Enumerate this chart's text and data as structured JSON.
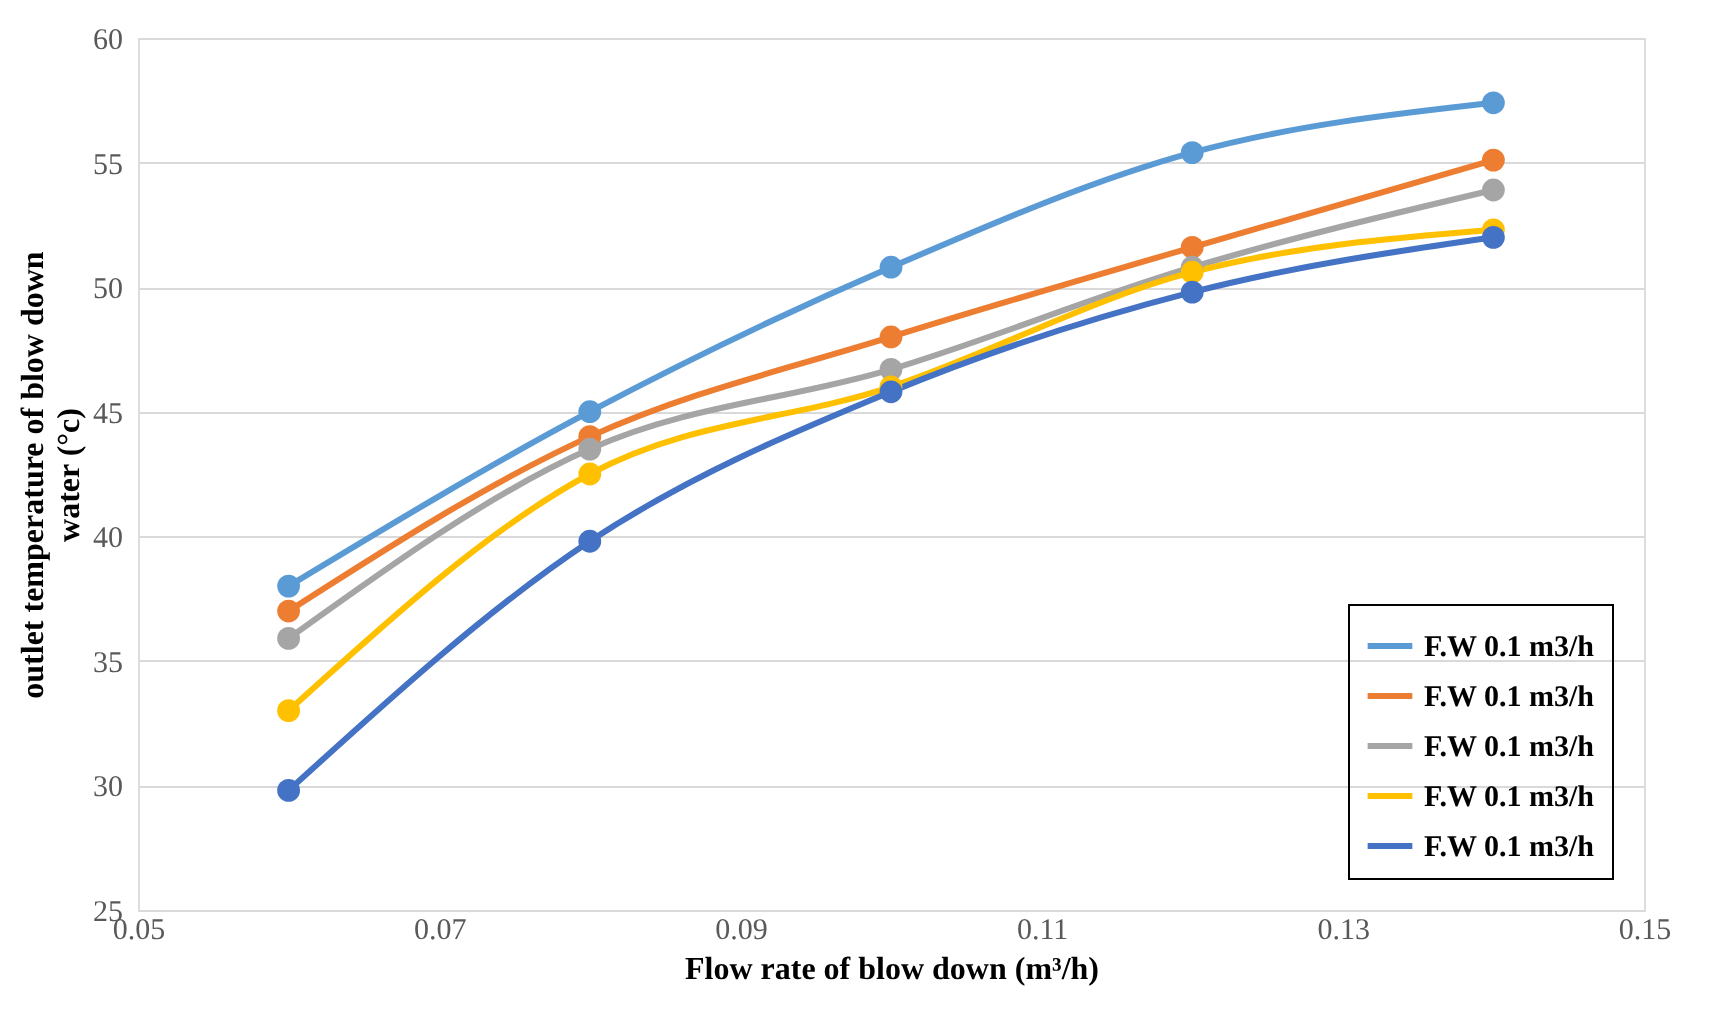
{
  "chart_data": {
    "type": "line",
    "xlabel": "Flow rate of blow down (m³/h)",
    "ylabel": "outlet temperature of blow down water (°c)",
    "x": [
      0.06,
      0.08,
      0.1,
      0.12,
      0.14
    ],
    "xlim": [
      0.05,
      0.15
    ],
    "xticks": [
      {
        "value": 0.05,
        "label": "0.05"
      },
      {
        "value": 0.07,
        "label": "0.07"
      },
      {
        "value": 0.09,
        "label": "0.09"
      },
      {
        "value": 0.11,
        "label": "0.11"
      },
      {
        "value": 0.13,
        "label": "0.13"
      },
      {
        "value": 0.15,
        "label": "0.15"
      }
    ],
    "ylim": [
      25,
      60
    ],
    "yticks": [
      25,
      30,
      35,
      40,
      45,
      50,
      55,
      60
    ],
    "grid": "y",
    "legend": "bottom right",
    "marker": "circle",
    "line_style": "solid",
    "series": [
      {
        "name": "F.W 0.1 m3/h",
        "color": "#5b9bd5",
        "values": [
          38,
          45,
          50.8,
          55.4,
          57.4
        ]
      },
      {
        "name": "F.W 0.1 m3/h",
        "color": "#ed7d31",
        "values": [
          37,
          44,
          48,
          51.6,
          55.1
        ]
      },
      {
        "name": "F.W 0.1 m3/h",
        "color": "#a5a5a5",
        "values": [
          35.9,
          43.5,
          46.7,
          50.8,
          53.9
        ]
      },
      {
        "name": "F.W 0.1 m3/h",
        "color": "#ffc000",
        "values": [
          33,
          42.5,
          46,
          50.6,
          52.3
        ]
      },
      {
        "name": "F.W 0.1 m3/h",
        "color": "#4472c4",
        "values": [
          29.8,
          39.8,
          45.8,
          49.8,
          52
        ]
      }
    ]
  }
}
